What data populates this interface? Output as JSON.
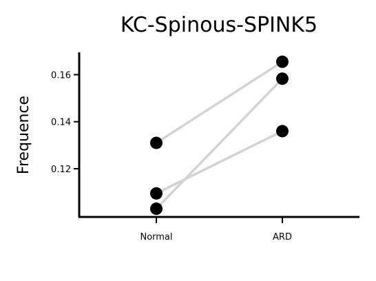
{
  "chart_data": {
    "type": "scatter",
    "title": "KC-Spinous-SPINK5",
    "xlabel": "",
    "ylabel": "Frequence",
    "categories": [
      "Normal",
      "ARD"
    ],
    "ylim": [
      0.0995,
      0.1695
    ],
    "yticks": [
      0.12,
      0.14,
      0.16
    ],
    "ytick_labels": [
      "0.12",
      "0.14",
      "0.16"
    ],
    "grid": false,
    "paired": true,
    "point_color": "#000000",
    "line_color": "#d3d3d3",
    "pairs": [
      {
        "values": [
          0.131,
          0.1655
        ]
      },
      {
        "values": [
          0.1095,
          0.136
        ]
      },
      {
        "values": [
          0.103,
          0.1583
        ]
      }
    ]
  }
}
